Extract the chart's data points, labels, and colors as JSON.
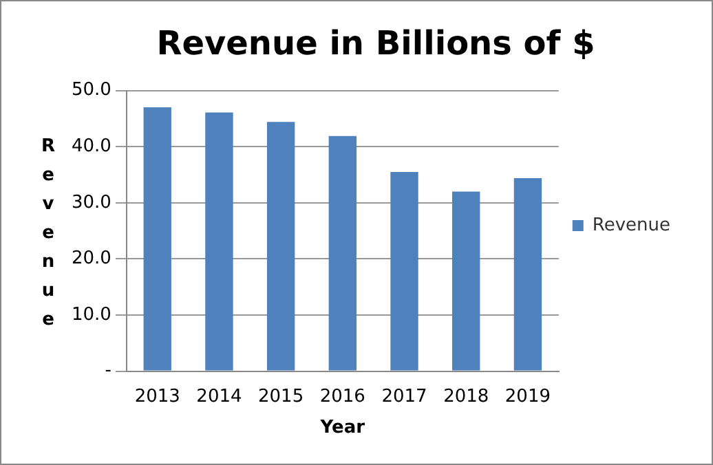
{
  "chart_data": {
    "type": "bar",
    "title": "Revenue in Billions of $",
    "xlabel": "Year",
    "ylabel": "Revenue",
    "categories": [
      "2013",
      "2014",
      "2015",
      "2016",
      "2017",
      "2018",
      "2019"
    ],
    "series": [
      {
        "name": "Revenue",
        "color": "#4f81bd",
        "values": [
          47.0,
          46.1,
          44.4,
          41.9,
          35.5,
          32.0,
          34.4
        ]
      }
    ],
    "ylim": [
      0,
      50
    ],
    "yticks": [
      {
        "value": 0,
        "label": "-"
      },
      {
        "value": 10,
        "label": "10.0"
      },
      {
        "value": 20,
        "label": "20.0"
      },
      {
        "value": 30,
        "label": "30.0"
      },
      {
        "value": 40,
        "label": "40.0"
      },
      {
        "value": 50,
        "label": "50.0"
      }
    ],
    "grid": "y",
    "legend": "right"
  }
}
